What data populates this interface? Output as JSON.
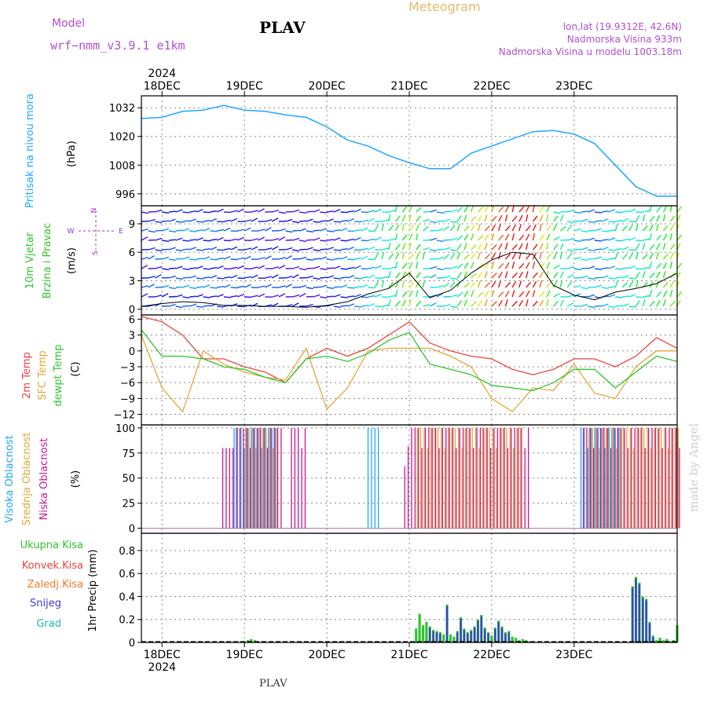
{
  "header": {
    "model_label": "Model",
    "model_name": "wrf−nmm_v3.9.1  e1km",
    "location": "PLAV",
    "app_title": "Meteogram",
    "lonlat": "lon,lat (19.9312E, 42.6N)",
    "elevation": "Nadmorska Visina 933m",
    "model_elevation": "Nadmorska Visina u modelu 1003.18m",
    "footer_location": "PLAV",
    "credit": "made by Angel"
  },
  "colors": {
    "pressure": "#1ea7ff",
    "t2m": "#e8463c",
    "sfc": "#e3a83a",
    "dewpt": "#2ec52e",
    "cloud_high": "#1ea7ff",
    "cloud_mid": "#e3a83a",
    "cloud_low": "#c8188c",
    "precip_total": "#2ec52e",
    "precip_snow": "#3c3cd0",
    "precip_grad": "#1fb6b6",
    "wind_title": "#2ec52e",
    "wind_compass": "#9b30d0",
    "model_text": "#b050d0",
    "meteogram_title": "#e8b870",
    "precip_conv": "#e8463c",
    "precip_frozen": "#f07a28"
  },
  "chart_data": [
    {
      "type": "line",
      "title": "",
      "ylabel_lines": [
        "Pritisak na nivou mora",
        "(hPa)"
      ],
      "ylim": [
        991,
        1037
      ],
      "yticks": [
        "1032",
        "1020",
        "1008",
        "996"
      ],
      "x_days": [
        "18DEC",
        "19DEC",
        "20DEC",
        "21DEC",
        "22DEC",
        "23DEC"
      ],
      "x_top_year": "2024",
      "x_bottom_year": "2024",
      "grid": true,
      "series": [
        {
          "x": [
            0,
            6,
            12,
            18,
            24,
            30,
            36,
            42,
            48,
            54,
            60,
            66,
            72,
            78,
            84,
            90,
            96,
            102,
            108,
            114,
            120,
            126,
            132,
            138,
            144,
            150,
            156
          ],
          "values": [
            1027.5,
            1028,
            1030.5,
            1031,
            1033,
            1031,
            1030.5,
            1029,
            1028,
            1024,
            1018.5,
            1016,
            1012,
            1009,
            1006.5,
            1006.5,
            1013,
            1016,
            1019,
            1022,
            1022.5,
            1021,
            1017,
            1008,
            999,
            995,
            995
          ]
        }
      ]
    },
    {
      "type": "line",
      "title": "",
      "ylabel_lines": [
        "10m Vjetar",
        "Brzina i Pravac",
        "(m/s)"
      ],
      "compass_top": "N",
      "compass_left": "W",
      "compass_right": "E",
      "compass_bottom": "S",
      "ylim": [
        -0.6,
        10.9
      ],
      "yticks": [
        "9",
        "6",
        "3",
        "0"
      ],
      "grid": true,
      "series": [
        {
          "x": [
            0,
            6,
            12,
            18,
            24,
            30,
            36,
            42,
            48,
            54,
            60,
            66,
            72,
            78,
            84,
            90,
            96,
            102,
            108,
            114,
            120,
            126,
            132,
            138,
            144,
            150,
            156
          ],
          "values": [
            0.3,
            0.6,
            0.8,
            0.7,
            0.4,
            0.4,
            0.3,
            0.3,
            0.2,
            0.4,
            0.8,
            1.6,
            2.2,
            3.8,
            1.2,
            2.0,
            3.8,
            5.2,
            6.0,
            5.8,
            2.5,
            1.5,
            1.0,
            1.8,
            2.2,
            2.7,
            3.8
          ]
        }
      ]
    },
    {
      "type": "line",
      "title": "",
      "ylabel_lines": [
        "2m Temp",
        "SFC Temp",
        "dewpt Temp",
        "(C)"
      ],
      "ylim": [
        -14,
        6.8
      ],
      "yticks": [
        "6",
        "3",
        "0",
        "−3",
        "−6",
        "−9",
        "−12"
      ],
      "grid": true,
      "series": [
        {
          "name": "2m Temp",
          "x": [
            0,
            6,
            12,
            18,
            24,
            30,
            36,
            42,
            48,
            54,
            60,
            66,
            72,
            78,
            84,
            90,
            96,
            102,
            108,
            114,
            120,
            126,
            132,
            138,
            144,
            150,
            156
          ],
          "values": [
            6.5,
            5.5,
            3.0,
            -1.5,
            -1.5,
            -3.0,
            -4.0,
            -6.0,
            -1.5,
            0.5,
            -1.0,
            0.5,
            3.0,
            5.5,
            1.5,
            0.0,
            -1.0,
            -1.5,
            -3.5,
            -4.5,
            -3.5,
            -1.5,
            -1.5,
            -3.0,
            -1.0,
            2.5,
            0.5
          ]
        },
        {
          "name": "SFC Temp",
          "x": [
            0,
            6,
            12,
            18,
            24,
            30,
            36,
            42,
            48,
            54,
            60,
            66,
            72,
            78,
            84,
            90,
            96,
            102,
            108,
            114,
            120,
            126,
            132,
            138,
            144,
            150,
            156
          ],
          "values": [
            3.0,
            -7.0,
            -11.5,
            0.0,
            -2.5,
            -4.0,
            -5.0,
            -5.5,
            0.5,
            -11.0,
            -7.0,
            0.0,
            0.5,
            0.5,
            0.5,
            -1.0,
            -3.0,
            -9.0,
            -11.5,
            -7.0,
            -7.5,
            -2.5,
            -8.0,
            -9.0,
            -3.0,
            0.0,
            0.0
          ]
        },
        {
          "name": "dewpt Temp",
          "x": [
            0,
            6,
            12,
            18,
            24,
            30,
            36,
            42,
            48,
            54,
            60,
            66,
            72,
            78,
            84,
            90,
            96,
            102,
            108,
            114,
            120,
            126,
            132,
            138,
            144,
            150,
            156
          ],
          "values": [
            4.0,
            -1.0,
            -1.0,
            -1.5,
            -3.0,
            -3.5,
            -5.0,
            -6.0,
            -1.5,
            -1.0,
            -2.0,
            -0.5,
            2.0,
            3.5,
            -2.5,
            -3.5,
            -4.5,
            -6.5,
            -7.0,
            -7.5,
            -6.0,
            -3.5,
            -3.5,
            -7.0,
            -4.0,
            -1.0,
            -2.0
          ]
        }
      ]
    },
    {
      "type": "bar",
      "title": "",
      "ylabel_lines": [
        "Visoka Oblacnost",
        "Srednja Oblacnost",
        "Niska Oblacnost",
        "(%)"
      ],
      "ylim": [
        -5,
        103
      ],
      "yticks": [
        "100",
        "75",
        "50",
        "25",
        "0"
      ],
      "grid": true,
      "series": [
        {
          "name": "Visoka Oblacnost",
          "segments": [
            [
              27,
              39,
              100
            ],
            [
              66,
              69,
              100
            ],
            [
              128,
              139,
              100
            ]
          ]
        },
        {
          "name": "Srednja Oblacnost",
          "segments": [
            [
              30,
              39,
              100
            ],
            [
              80,
              110,
              100
            ],
            [
              130,
              156,
              100
            ]
          ]
        },
        {
          "name": "Niska Oblacnost",
          "segments": [
            [
              23,
              25,
              80
            ],
            [
              26,
              40,
              100
            ],
            [
              43,
              47,
              100
            ],
            [
              76,
              77,
              82
            ],
            [
              78,
              112,
              100
            ],
            [
              128,
              156,
              100
            ]
          ]
        }
      ]
    },
    {
      "type": "bar",
      "title": "",
      "ylabel_lines": [
        "1hr Precip (mm)"
      ],
      "legend": [
        "Ukupna Kisa",
        "Konvek.Kisa",
        "Zaledj.Kisa",
        "Snijeg",
        "Grad"
      ],
      "ylim": [
        0,
        0.95
      ],
      "yticks": [
        "0.8",
        "0.6",
        "0.4",
        "0.2",
        "0"
      ],
      "grid": true,
      "x": [
        27,
        28,
        29,
        30,
        31,
        32,
        33,
        34,
        35,
        80,
        81,
        82,
        83,
        84,
        85,
        86,
        87,
        88,
        89,
        90,
        91,
        92,
        93,
        94,
        95,
        96,
        97,
        98,
        99,
        100,
        101,
        102,
        103,
        104,
        105,
        106,
        107,
        108,
        109,
        110,
        111,
        112,
        113,
        143,
        144,
        145,
        146,
        147,
        148,
        149,
        150,
        151,
        152,
        153,
        154,
        155,
        156
      ],
      "values": [
        0.005,
        0.005,
        0.01,
        0.01,
        0.02,
        0.03,
        0.02,
        0.01,
        0.005,
        0.12,
        0.25,
        0.15,
        0.18,
        0.14,
        0.11,
        0.1,
        0.09,
        0.07,
        0.33,
        0.07,
        0.05,
        0.1,
        0.22,
        0.12,
        0.09,
        0.11,
        0.14,
        0.2,
        0.24,
        0.13,
        0.09,
        0.06,
        0.13,
        0.19,
        0.14,
        0.09,
        0.1,
        0.05,
        0.04,
        0.02,
        0.03,
        0.02,
        0.01,
        0.49,
        0.57,
        0.52,
        0.4,
        0.38,
        0.18,
        0.06,
        0.02,
        0.04,
        0.02,
        0.03,
        0.01,
        0.02,
        0.15
      ],
      "snow_x": [
        84,
        85,
        86,
        87,
        89,
        92,
        93,
        94,
        95,
        96,
        97,
        98,
        99,
        100,
        101,
        103,
        104,
        105,
        106,
        107,
        143,
        144,
        145,
        146,
        147,
        148,
        149
      ]
    }
  ]
}
